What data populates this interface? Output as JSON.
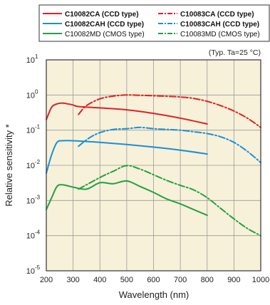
{
  "chart_data": {
    "type": "line",
    "note": "(Typ. Ta=25 °C)",
    "xlabel": "Wavelength (nm)",
    "ylabel": "Relative sensitivity *",
    "xlim": [
      200,
      1000
    ],
    "ylim": [
      1e-05,
      10
    ],
    "yscale": "log",
    "grid": true,
    "legend_position": "top",
    "x_ticks": [
      "200",
      "300",
      "400",
      "500",
      "600",
      "700",
      "800",
      "900",
      "1000"
    ],
    "y_ticks": [
      {
        "exp": -5,
        "base": "10",
        "power": "-5"
      },
      {
        "exp": -4,
        "base": "10",
        "power": "-4"
      },
      {
        "exp": -3,
        "base": "10",
        "power": "-3"
      },
      {
        "exp": -2,
        "base": "10",
        "power": "-2"
      },
      {
        "exp": -1,
        "base": "10",
        "power": "-1"
      },
      {
        "exp": 0,
        "base": "10",
        "power": "0"
      },
      {
        "exp": 1,
        "base": "10",
        "power": "1"
      }
    ],
    "series": [
      {
        "name": "C10082CA (CCD type)",
        "color": "#e0202a",
        "dash": "solid",
        "bold": true,
        "x": [
          200,
          220,
          240,
          260,
          280,
          300,
          320,
          400,
          500,
          600,
          700,
          800
        ],
        "y": [
          0.2,
          0.45,
          0.56,
          0.59,
          0.56,
          0.52,
          0.47,
          0.43,
          0.38,
          0.3,
          0.22,
          0.15
        ]
      },
      {
        "name": "C10083CA (CCD type)",
        "color": "#e0202a",
        "dash": "dashdot",
        "bold": true,
        "x": [
          320,
          350,
          400,
          450,
          500,
          550,
          600,
          650,
          700,
          750,
          800,
          850,
          900,
          950,
          1000
        ],
        "y": [
          0.28,
          0.5,
          0.78,
          0.93,
          1.0,
          0.98,
          0.95,
          0.92,
          0.88,
          0.8,
          0.66,
          0.5,
          0.35,
          0.22,
          0.12
        ]
      },
      {
        "name": "C10082CAH (CCD type)",
        "color": "#1a8fd6",
        "dash": "solid",
        "bold": true,
        "x": [
          200,
          220,
          240,
          260,
          300,
          400,
          500,
          600,
          700,
          800
        ],
        "y": [
          0.006,
          0.02,
          0.045,
          0.05,
          0.05,
          0.045,
          0.039,
          0.033,
          0.027,
          0.021
        ]
      },
      {
        "name": "C10083CAH (CCD type)",
        "color": "#1a8fd6",
        "dash": "dashdot",
        "bold": true,
        "x": [
          320,
          360,
          400,
          450,
          500,
          550,
          600,
          650,
          700,
          750,
          800,
          850,
          900,
          950,
          1000
        ],
        "y": [
          0.035,
          0.06,
          0.085,
          0.105,
          0.11,
          0.12,
          0.11,
          0.105,
          0.1,
          0.09,
          0.08,
          0.065,
          0.045,
          0.025,
          0.012
        ]
      },
      {
        "name": "C10082MD (CMOS type)",
        "color": "#22a047",
        "dash": "solid",
        "bold": false,
        "x": [
          200,
          220,
          240,
          260,
          300,
          350,
          400,
          450,
          500,
          550,
          600,
          650,
          700,
          750,
          800
        ],
        "y": [
          0.00055,
          0.0012,
          0.0025,
          0.0028,
          0.0024,
          0.0021,
          0.0032,
          0.003,
          0.0036,
          0.0025,
          0.0017,
          0.0011,
          0.0008,
          0.00055,
          0.00038
        ]
      },
      {
        "name": "C10083MD (CMOS type)",
        "color": "#22a047",
        "dash": "dashdot",
        "bold": false,
        "x": [
          320,
          350,
          400,
          450,
          500,
          550,
          600,
          650,
          700,
          750,
          800,
          850,
          900,
          950,
          1000
        ],
        "y": [
          0.0021,
          0.0028,
          0.0045,
          0.0068,
          0.0098,
          0.0078,
          0.0054,
          0.0037,
          0.0027,
          0.002,
          0.0012,
          0.0006,
          0.0003,
          0.00016,
          0.0001
        ]
      }
    ]
  }
}
